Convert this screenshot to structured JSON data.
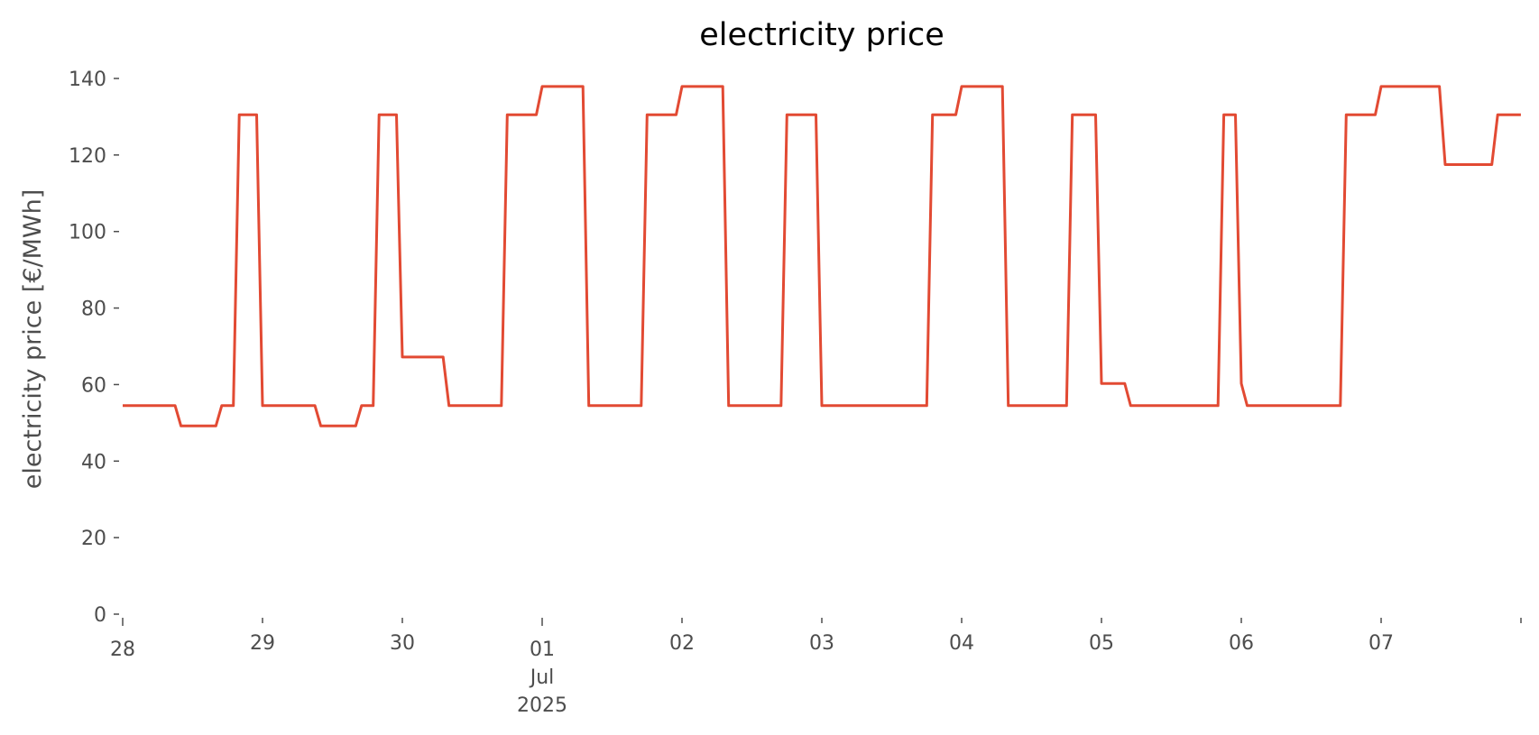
{
  "chart_data": {
    "type": "line",
    "title": "electricity price",
    "xlabel": "",
    "ylabel": "electricity price [€/MWh]",
    "ylim": [
      0,
      140
    ],
    "xlim": [
      "2025-06-28T00:00",
      "2025-07-08T00:00"
    ],
    "grid": false,
    "line_color": "#E24A33",
    "yticks": [
      "0",
      "20",
      "40",
      "60",
      "80",
      "100",
      "120",
      "140"
    ],
    "xticks": [
      {
        "date": "2025-06-28T00:00",
        "label": "28",
        "major": true
      },
      {
        "date": "2025-06-29T00:00",
        "label": "29",
        "major": false
      },
      {
        "date": "2025-06-30T00:00",
        "label": "30",
        "major": false
      },
      {
        "date": "2025-07-01T00:00",
        "label": "01",
        "major": true,
        "sub1": "Jul",
        "sub2": "2025"
      },
      {
        "date": "2025-07-02T00:00",
        "label": "02",
        "major": false
      },
      {
        "date": "2025-07-03T00:00",
        "label": "03",
        "major": false
      },
      {
        "date": "2025-07-04T00:00",
        "label": "04",
        "major": false
      },
      {
        "date": "2025-07-05T00:00",
        "label": "05",
        "major": false
      },
      {
        "date": "2025-07-06T00:00",
        "label": "06",
        "major": false
      },
      {
        "date": "2025-07-07T00:00",
        "label": "07",
        "major": false
      },
      {
        "date": "2025-07-08T00:00",
        "label": "",
        "major": false
      }
    ],
    "series": [
      {
        "points": [
          [
            "2025-06-28T00:00",
            54.5
          ],
          [
            "2025-06-28T09:00",
            54.5
          ],
          [
            "2025-06-28T10:00",
            49.2
          ],
          [
            "2025-06-28T16:00",
            49.2
          ],
          [
            "2025-06-28T17:00",
            54.5
          ],
          [
            "2025-06-28T19:00",
            54.5
          ],
          [
            "2025-06-28T20:00",
            130.5
          ],
          [
            "2025-06-28T23:00",
            130.5
          ],
          [
            "2025-06-29T00:00",
            54.5
          ],
          [
            "2025-06-29T09:00",
            54.5
          ],
          [
            "2025-06-29T10:00",
            49.2
          ],
          [
            "2025-06-29T16:00",
            49.2
          ],
          [
            "2025-06-29T17:00",
            54.5
          ],
          [
            "2025-06-29T19:00",
            54.5
          ],
          [
            "2025-06-29T20:00",
            130.5
          ],
          [
            "2025-06-29T23:00",
            130.5
          ],
          [
            "2025-06-30T00:00",
            67.2
          ],
          [
            "2025-06-30T07:00",
            67.2
          ],
          [
            "2025-06-30T08:00",
            54.5
          ],
          [
            "2025-06-30T17:00",
            54.5
          ],
          [
            "2025-06-30T18:00",
            130.5
          ],
          [
            "2025-06-30T23:00",
            130.5
          ],
          [
            "2025-07-01T00:00",
            137.9
          ],
          [
            "2025-07-01T07:00",
            137.9
          ],
          [
            "2025-07-01T08:00",
            54.5
          ],
          [
            "2025-07-01T17:00",
            54.5
          ],
          [
            "2025-07-01T18:00",
            130.5
          ],
          [
            "2025-07-01T23:00",
            130.5
          ],
          [
            "2025-07-02T00:00",
            137.9
          ],
          [
            "2025-07-02T07:00",
            137.9
          ],
          [
            "2025-07-02T08:00",
            54.5
          ],
          [
            "2025-07-02T17:00",
            54.5
          ],
          [
            "2025-07-02T18:00",
            130.5
          ],
          [
            "2025-07-02T23:00",
            130.5
          ],
          [
            "2025-07-03T00:00",
            54.5
          ],
          [
            "2025-07-03T18:00",
            54.5
          ],
          [
            "2025-07-03T19:00",
            130.5
          ],
          [
            "2025-07-03T23:00",
            130.5
          ],
          [
            "2025-07-04T00:00",
            137.9
          ],
          [
            "2025-07-04T07:00",
            137.9
          ],
          [
            "2025-07-04T08:00",
            54.5
          ],
          [
            "2025-07-04T18:00",
            54.5
          ],
          [
            "2025-07-04T19:00",
            130.5
          ],
          [
            "2025-07-04T23:00",
            130.5
          ],
          [
            "2025-07-05T00:00",
            60.3
          ],
          [
            "2025-07-05T04:00",
            60.3
          ],
          [
            "2025-07-05T05:00",
            54.5
          ],
          [
            "2025-07-05T20:00",
            54.5
          ],
          [
            "2025-07-05T21:00",
            130.5
          ],
          [
            "2025-07-05T23:00",
            130.5
          ],
          [
            "2025-07-06T00:00",
            60.3
          ],
          [
            "2025-07-06T01:00",
            54.5
          ],
          [
            "2025-07-06T17:00",
            54.5
          ],
          [
            "2025-07-06T18:00",
            130.5
          ],
          [
            "2025-07-06T23:00",
            130.5
          ],
          [
            "2025-07-07T00:00",
            137.9
          ],
          [
            "2025-07-07T10:00",
            137.9
          ],
          [
            "2025-07-07T11:00",
            117.5
          ],
          [
            "2025-07-07T19:00",
            117.5
          ],
          [
            "2025-07-07T20:00",
            130.5
          ],
          [
            "2025-07-07T23:59",
            130.5
          ]
        ]
      }
    ]
  }
}
